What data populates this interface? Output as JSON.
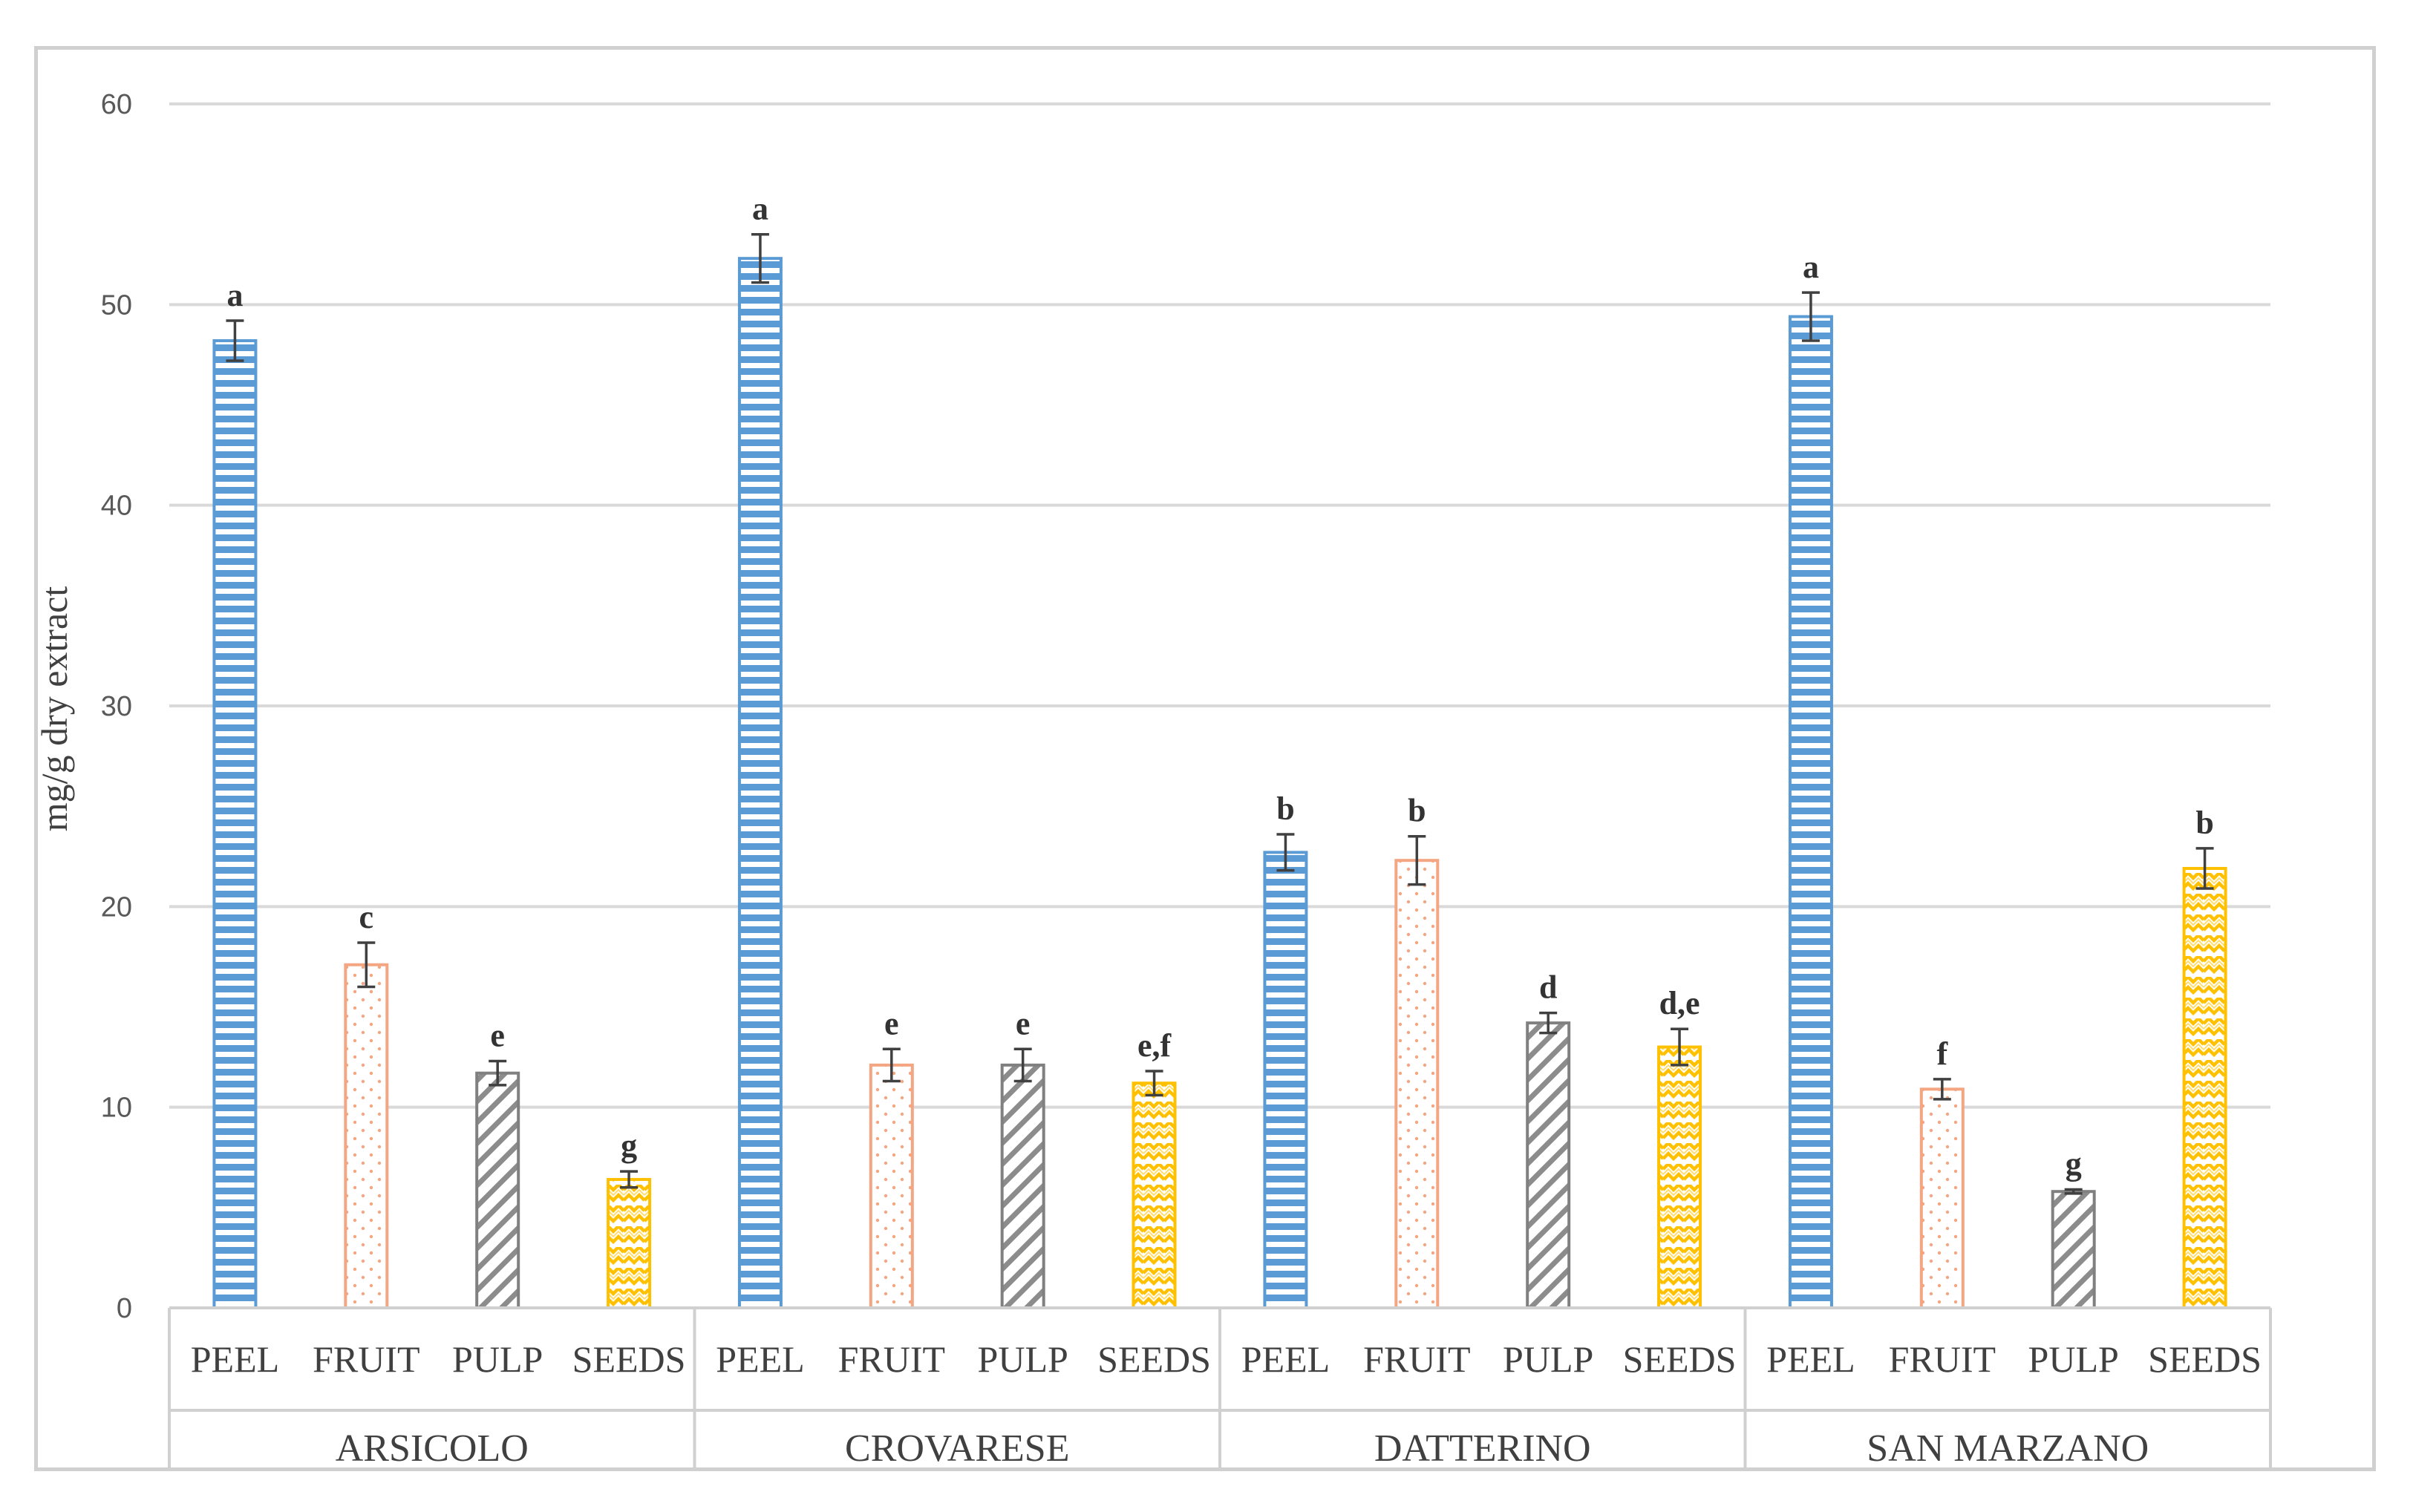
{
  "chart_data": {
    "type": "bar",
    "title": "",
    "xlabel": "",
    "ylabel": "mg/g dry extract",
    "ylim": [
      0,
      60
    ],
    "yticks": [
      0,
      10,
      20,
      30,
      40,
      50,
      60
    ],
    "grid": true,
    "legend": "none",
    "groups": [
      {
        "name": "ARSICOLO",
        "bars": [
          {
            "part": "PEEL",
            "value": 48.2,
            "error": 1.0,
            "letter": "a"
          },
          {
            "part": "FRUIT",
            "value": 17.1,
            "error": 1.1,
            "letter": "c"
          },
          {
            "part": "PULP",
            "value": 11.7,
            "error": 0.6,
            "letter": "e"
          },
          {
            "part": "SEEDS",
            "value": 6.4,
            "error": 0.4,
            "letter": "g"
          }
        ]
      },
      {
        "name": "CROVARESE",
        "bars": [
          {
            "part": "PEEL",
            "value": 52.3,
            "error": 1.2,
            "letter": "a"
          },
          {
            "part": "FRUIT",
            "value": 12.1,
            "error": 0.8,
            "letter": "e"
          },
          {
            "part": "PULP",
            "value": 12.1,
            "error": 0.8,
            "letter": "e"
          },
          {
            "part": "SEEDS",
            "value": 11.2,
            "error": 0.6,
            "letter": "e,f"
          }
        ]
      },
      {
        "name": "DATTERINO",
        "bars": [
          {
            "part": "PEEL",
            "value": 22.7,
            "error": 0.9,
            "letter": "b"
          },
          {
            "part": "FRUIT",
            "value": 22.3,
            "error": 1.2,
            "letter": "b"
          },
          {
            "part": "PULP",
            "value": 14.2,
            "error": 0.5,
            "letter": "d"
          },
          {
            "part": "SEEDS",
            "value": 13.0,
            "error": 0.9,
            "letter": "d,e"
          }
        ]
      },
      {
        "name": "SAN MARZANO",
        "bars": [
          {
            "part": "PEEL",
            "value": 49.4,
            "error": 1.2,
            "letter": "a"
          },
          {
            "part": "FRUIT",
            "value": 10.9,
            "error": 0.5,
            "letter": "f"
          },
          {
            "part": "PULP",
            "value": 5.8,
            "error": 0.1,
            "letter": "g"
          },
          {
            "part": "SEEDS",
            "value": 21.9,
            "error": 1.0,
            "letter": "b"
          }
        ]
      }
    ],
    "part_styles": {
      "PEEL": {
        "stroke": "#5b9bd5",
        "pattern": "horizontal-stripes"
      },
      "FRUIT": {
        "stroke": "#f4a582",
        "pattern": "dots"
      },
      "PULP": {
        "stroke": "#808080",
        "pattern": "diagonal-stripes"
      },
      "SEEDS": {
        "stroke": "#ffc000",
        "pattern": "zigzag"
      }
    }
  }
}
